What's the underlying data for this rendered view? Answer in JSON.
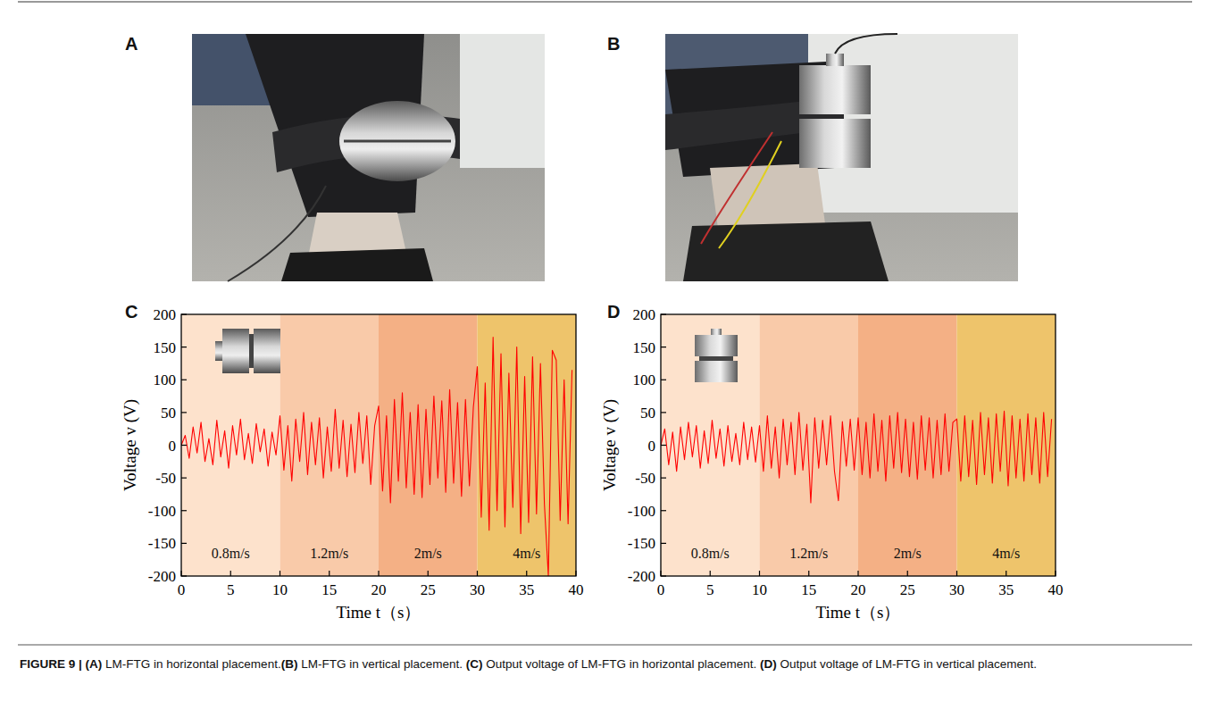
{
  "photos": [
    {
      "letter": "A"
    },
    {
      "letter": "B"
    }
  ],
  "chart_data": [
    {
      "type": "line",
      "letter": "C",
      "color": "#ff0000",
      "xlabel": "Time t（s）",
      "ylabel": "Voltage v (V)",
      "xlim": [
        0,
        40
      ],
      "ylim": [
        -200,
        200
      ],
      "xticks": [
        0,
        5,
        10,
        15,
        20,
        25,
        30,
        35,
        40
      ],
      "yticks": [
        -200,
        -150,
        -100,
        -50,
        0,
        50,
        100,
        150,
        200
      ],
      "grid": false,
      "bands": [
        {
          "from": 0,
          "to": 10,
          "label": "0.8m/s",
          "color": "#fde2cc"
        },
        {
          "from": 10,
          "to": 20,
          "label": "1.2m/s",
          "color": "#f9caa9"
        },
        {
          "from": 20,
          "to": 30,
          "label": "2m/s",
          "color": "#f4b085"
        },
        {
          "from": 30,
          "to": 40,
          "label": "4m/s",
          "color": "#eec46b"
        }
      ],
      "x": [
        0,
        0.4,
        0.8,
        1.2,
        1.6,
        2,
        2.4,
        2.8,
        3.2,
        3.6,
        4,
        4.4,
        4.8,
        5.2,
        5.6,
        6,
        6.4,
        6.8,
        7.2,
        7.6,
        8,
        8.4,
        8.8,
        9.2,
        9.6,
        10,
        10.4,
        10.8,
        11.2,
        11.6,
        12,
        12.4,
        12.8,
        13.2,
        13.6,
        14,
        14.4,
        14.8,
        15.2,
        15.6,
        16,
        16.4,
        16.8,
        17.2,
        17.6,
        18,
        18.4,
        18.8,
        19.2,
        19.6,
        20,
        20.4,
        20.8,
        21.2,
        21.6,
        22,
        22.4,
        22.8,
        23.2,
        23.6,
        24,
        24.4,
        24.8,
        25.2,
        25.6,
        26,
        26.4,
        26.8,
        27.2,
        27.6,
        28,
        28.4,
        28.8,
        29.2,
        29.6,
        30,
        30.4,
        30.8,
        31.2,
        31.6,
        32,
        32.4,
        32.8,
        33.2,
        33.6,
        34,
        34.4,
        34.8,
        35.2,
        35.6,
        36,
        36.4,
        36.8,
        37.2,
        37.6,
        38,
        38.4,
        38.8,
        39.2,
        39.6
      ],
      "values": [
        0,
        15,
        -20,
        28,
        -12,
        35,
        -25,
        10,
        -30,
        38,
        -18,
        22,
        -35,
        30,
        -15,
        40,
        -22,
        18,
        -28,
        33,
        -10,
        25,
        -32,
        20,
        -15,
        45,
        -38,
        30,
        -55,
        40,
        -25,
        50,
        -45,
        35,
        -30,
        42,
        -50,
        28,
        -40,
        55,
        -35,
        38,
        -48,
        32,
        -42,
        50,
        -28,
        45,
        -60,
        30,
        60,
        -70,
        45,
        -88,
        70,
        -55,
        80,
        -65,
        50,
        -75,
        62,
        -80,
        55,
        -60,
        75,
        -50,
        68,
        -72,
        85,
        -58,
        65,
        -78,
        70,
        -62,
        58,
        120,
        -110,
        95,
        -130,
        165,
        -100,
        140,
        -125,
        110,
        -95,
        150,
        -135,
        105,
        -118,
        135,
        -105,
        125,
        -90,
        -200,
        145,
        130,
        -115,
        100,
        -120,
        115
      ]
    },
    {
      "type": "line",
      "letter": "D",
      "color": "#ff0000",
      "xlabel": "Time t（s）",
      "ylabel": "Voltage v (V)",
      "xlim": [
        0,
        40
      ],
      "ylim": [
        -200,
        200
      ],
      "xticks": [
        0,
        5,
        10,
        15,
        20,
        25,
        30,
        35,
        40
      ],
      "yticks": [
        -200,
        -150,
        -100,
        -50,
        0,
        50,
        100,
        150,
        200
      ],
      "grid": false,
      "bands": [
        {
          "from": 0,
          "to": 10,
          "label": "0.8m/s",
          "color": "#fde2cc"
        },
        {
          "from": 10,
          "to": 20,
          "label": "1.2m/s",
          "color": "#f9caa9"
        },
        {
          "from": 20,
          "to": 30,
          "label": "2m/s",
          "color": "#f4b085"
        },
        {
          "from": 30,
          "to": 40,
          "label": "4m/s",
          "color": "#eec46b"
        }
      ],
      "x": [
        0,
        0.4,
        0.8,
        1.2,
        1.6,
        2,
        2.4,
        2.8,
        3.2,
        3.6,
        4,
        4.4,
        4.8,
        5.2,
        5.6,
        6,
        6.4,
        6.8,
        7.2,
        7.6,
        8,
        8.4,
        8.8,
        9.2,
        9.6,
        10,
        10.4,
        10.8,
        11.2,
        11.6,
        12,
        12.4,
        12.8,
        13.2,
        13.6,
        14,
        14.4,
        14.8,
        15.2,
        15.6,
        16,
        16.4,
        16.8,
        17.2,
        17.6,
        18,
        18.4,
        18.8,
        19.2,
        19.6,
        20,
        20.4,
        20.8,
        21.2,
        21.6,
        22,
        22.4,
        22.8,
        23.2,
        23.6,
        24,
        24.4,
        24.8,
        25.2,
        25.6,
        26,
        26.4,
        26.8,
        27.2,
        27.6,
        28,
        28.4,
        28.8,
        29.2,
        29.6,
        30,
        30.4,
        30.8,
        31.2,
        31.6,
        32,
        32.4,
        32.8,
        33.2,
        33.6,
        34,
        34.4,
        34.8,
        35.2,
        35.6,
        36,
        36.4,
        36.8,
        37.2,
        37.6,
        38,
        38.4,
        38.8,
        39.2,
        39.6
      ],
      "values": [
        0,
        25,
        -30,
        20,
        -40,
        28,
        -22,
        35,
        -18,
        30,
        -35,
        22,
        -28,
        38,
        -20,
        25,
        -32,
        30,
        -25,
        18,
        -30,
        35,
        -22,
        28,
        -26,
        30,
        -40,
        45,
        -35,
        28,
        -50,
        40,
        -30,
        35,
        -45,
        50,
        -38,
        32,
        -88,
        42,
        -35,
        38,
        -30,
        45,
        -40,
        -85,
        36,
        -32,
        40,
        -38,
        42,
        -45,
        35,
        -50,
        48,
        -40,
        38,
        -55,
        45,
        -35,
        50,
        -42,
        40,
        -48,
        35,
        -52,
        45,
        -38,
        42,
        -50,
        38,
        -45,
        48,
        -40,
        35,
        40,
        -55,
        45,
        -48,
        38,
        -60,
        50,
        -45,
        42,
        -58,
        48,
        -40,
        52,
        -62,
        45,
        -50,
        40,
        -55,
        48,
        -45,
        42,
        -58,
        50,
        -48,
        40
      ]
    }
  ],
  "caption": {
    "label": "FIGURE 9 |",
    "parts": [
      {
        "letter": "(A)",
        "text": " LM-FTG in horizontal placement."
      },
      {
        "letter": "(B)",
        "text": " LM-FTG in vertical placement. "
      },
      {
        "letter": "(C)",
        "text": " Output voltage of LM-FTG in horizontal placement. "
      },
      {
        "letter": "(D)",
        "text": " Output voltage of LM-FTG in vertical placement."
      }
    ]
  }
}
